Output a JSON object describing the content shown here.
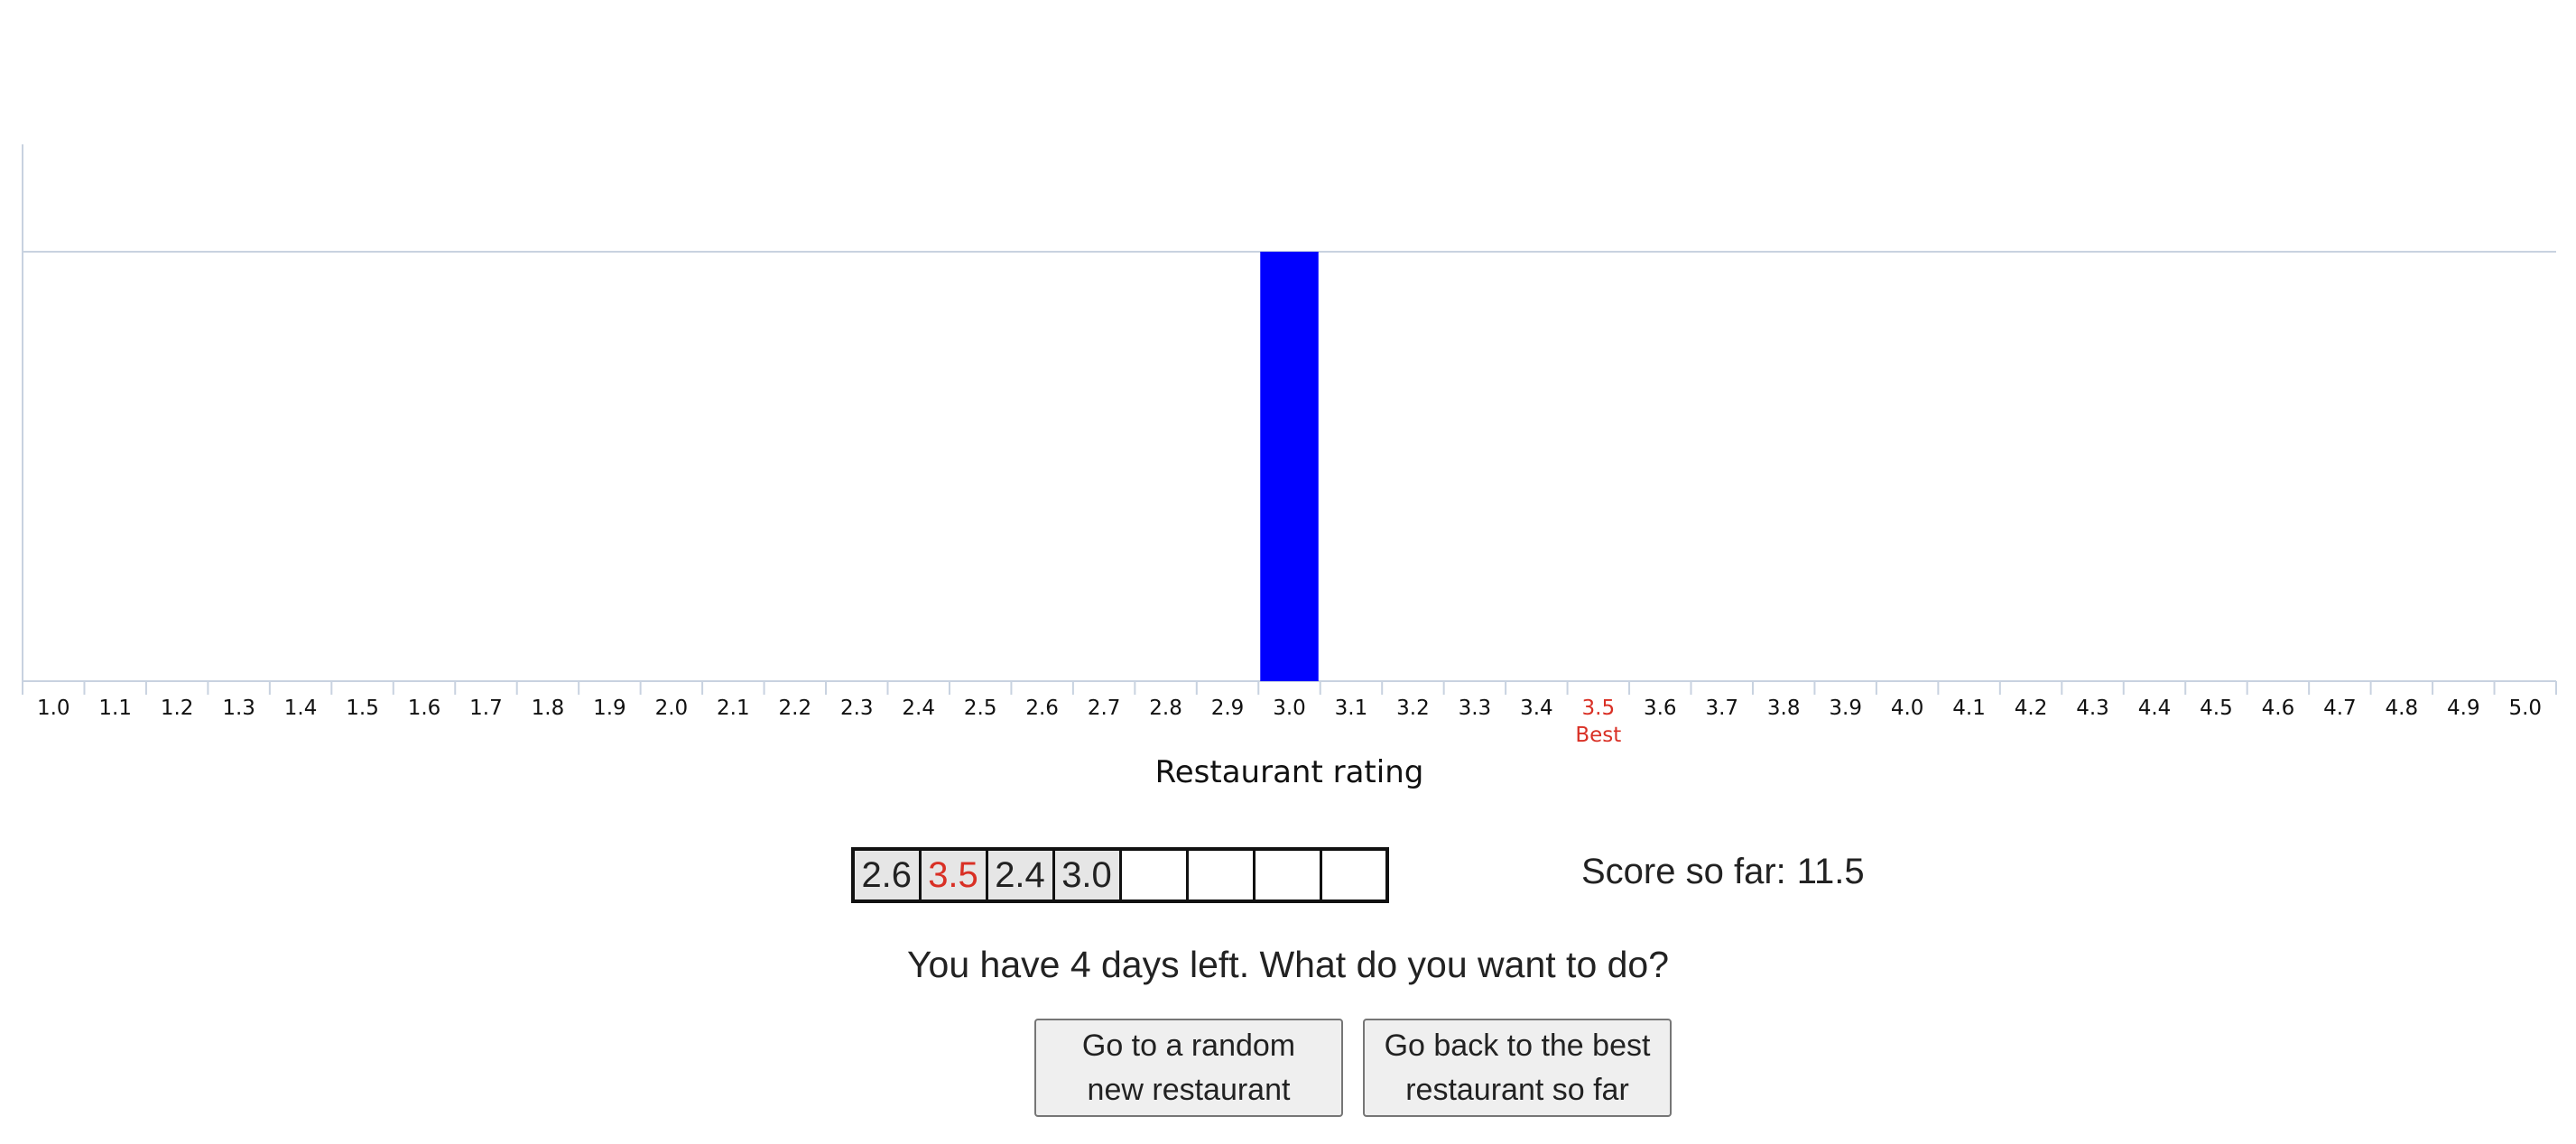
{
  "chart_data": {
    "type": "bar",
    "xlabel": "Restaurant rating",
    "categories": [
      "1.0",
      "1.1",
      "1.2",
      "1.3",
      "1.4",
      "1.5",
      "1.6",
      "1.7",
      "1.8",
      "1.9",
      "2.0",
      "2.1",
      "2.2",
      "2.3",
      "2.4",
      "2.5",
      "2.6",
      "2.7",
      "2.8",
      "2.9",
      "3.0",
      "3.1",
      "3.2",
      "3.3",
      "3.4",
      "3.5",
      "3.6",
      "3.7",
      "3.8",
      "3.9",
      "4.0",
      "4.1",
      "4.2",
      "4.3",
      "4.4",
      "4.5",
      "4.6",
      "4.7",
      "4.8",
      "4.9",
      "5.0"
    ],
    "highlighted_bar": "3.0",
    "bar_value": 1,
    "ylim": [
      0,
      1.25
    ],
    "bar_color": "#0000ff",
    "best_category": "3.5",
    "best_label": "Best",
    "best_color": "#d93025",
    "grid": false
  },
  "history": {
    "ratings": [
      "2.6",
      "3.5",
      "2.4",
      "3.0",
      "",
      "",
      "",
      ""
    ],
    "best_index": 1,
    "best_color": "#d93025"
  },
  "score": {
    "label": "Score so far:",
    "value": "11.5"
  },
  "prompt": "You have 4 days left. What do you want to do?",
  "buttons": {
    "random": [
      "Go to a random",
      "new restaurant"
    ],
    "best": [
      "Go back to the best",
      "restaurant so far"
    ]
  }
}
